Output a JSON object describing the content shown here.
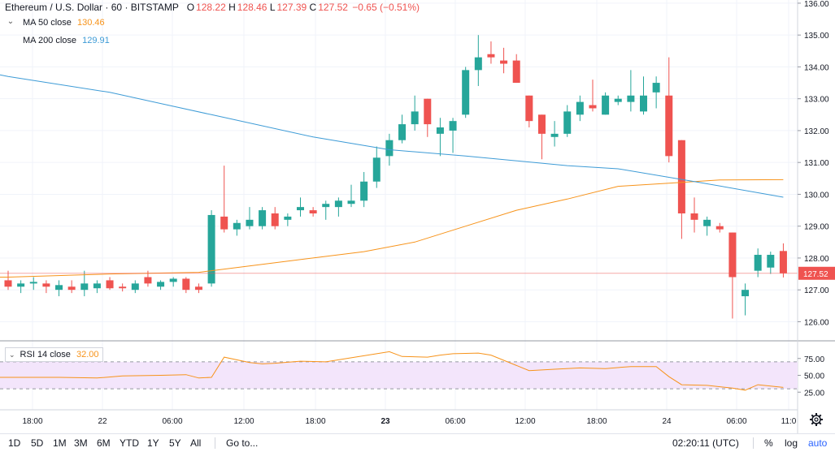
{
  "header": {
    "symbol": "Ethereum / U.S. Dollar",
    "interval": "60",
    "exchange": "BITSTAMP",
    "open_label": "O",
    "open": "128.22",
    "high_label": "H",
    "high": "128.46",
    "low_label": "L",
    "low": "127.39",
    "close_label": "C",
    "close": "127.52",
    "change": "−0.65 (−0.51%)"
  },
  "indicators": {
    "ma50": {
      "label": "MA 50 close",
      "value": "130.46",
      "color": "#f7931a"
    },
    "ma200": {
      "label": "MA 200 close",
      "value": "129.91",
      "color": "#3d9bd6"
    },
    "rsi": {
      "label": "RSI 14 close",
      "value": "32.00",
      "color": "#f7931a"
    }
  },
  "price_axis": {
    "ticks": [
      "136.00",
      "135.00",
      "134.00",
      "133.00",
      "132.00",
      "131.00",
      "130.00",
      "129.00",
      "128.00",
      "127.00",
      "126.00"
    ],
    "last_price": "127.52"
  },
  "rsi_axis": {
    "ticks": [
      "75.00",
      "50.00",
      "25.00"
    ]
  },
  "time_axis": {
    "ticks": [
      {
        "label": "18:00",
        "bold": false
      },
      {
        "label": "22",
        "bold": false
      },
      {
        "label": "06:00",
        "bold": false
      },
      {
        "label": "12:00",
        "bold": false
      },
      {
        "label": "18:00",
        "bold": false
      },
      {
        "label": "23",
        "bold": true
      },
      {
        "label": "06:00",
        "bold": false
      },
      {
        "label": "12:00",
        "bold": false
      },
      {
        "label": "18:00",
        "bold": false
      },
      {
        "label": "24",
        "bold": false
      },
      {
        "label": "06:00",
        "bold": false
      },
      {
        "label": "11:0",
        "bold": false
      }
    ]
  },
  "bottom_bar": {
    "ranges": [
      "1D",
      "5D",
      "1M",
      "3M",
      "6M",
      "YTD",
      "1Y",
      "5Y",
      "All"
    ],
    "goto": "Go to...",
    "clock": "02:20:11 (UTC)",
    "percent": "%",
    "log": "log",
    "auto": "auto"
  },
  "colors": {
    "up": "#26a69a",
    "down": "#ef5350",
    "rsi_band": "#f3e5fb"
  },
  "chart_data": {
    "type": "candlestick",
    "candles": [
      {
        "o": 127.3,
        "h": 127.6,
        "l": 127.0,
        "c": 127.1
      },
      {
        "o": 127.1,
        "h": 127.3,
        "l": 126.9,
        "c": 127.2
      },
      {
        "o": 127.2,
        "h": 127.4,
        "l": 127.0,
        "c": 127.25
      },
      {
        "o": 127.2,
        "h": 127.3,
        "l": 126.9,
        "c": 127.1
      },
      {
        "o": 127.0,
        "h": 127.3,
        "l": 126.8,
        "c": 127.15
      },
      {
        "o": 127.1,
        "h": 127.3,
        "l": 126.9,
        "c": 127.0
      },
      {
        "o": 127.0,
        "h": 127.6,
        "l": 126.8,
        "c": 127.2
      },
      {
        "o": 127.05,
        "h": 127.3,
        "l": 126.9,
        "c": 127.2
      },
      {
        "o": 127.3,
        "h": 127.4,
        "l": 127.0,
        "c": 127.05
      },
      {
        "o": 127.1,
        "h": 127.2,
        "l": 126.95,
        "c": 127.05
      },
      {
        "o": 127.0,
        "h": 127.3,
        "l": 126.9,
        "c": 127.2
      },
      {
        "o": 127.4,
        "h": 127.6,
        "l": 127.1,
        "c": 127.2
      },
      {
        "o": 127.1,
        "h": 127.3,
        "l": 127.0,
        "c": 127.25
      },
      {
        "o": 127.25,
        "h": 127.4,
        "l": 127.1,
        "c": 127.35
      },
      {
        "o": 127.35,
        "h": 127.4,
        "l": 126.9,
        "c": 127.0
      },
      {
        "o": 127.1,
        "h": 127.2,
        "l": 126.9,
        "c": 127.0
      },
      {
        "o": 127.2,
        "h": 129.5,
        "l": 127.1,
        "c": 129.35
      },
      {
        "o": 129.3,
        "h": 130.9,
        "l": 128.8,
        "c": 128.9
      },
      {
        "o": 128.9,
        "h": 129.2,
        "l": 128.7,
        "c": 129.1
      },
      {
        "o": 129.0,
        "h": 129.6,
        "l": 128.9,
        "c": 129.2
      },
      {
        "o": 129.0,
        "h": 129.6,
        "l": 128.9,
        "c": 129.5
      },
      {
        "o": 129.4,
        "h": 129.6,
        "l": 128.9,
        "c": 129.0
      },
      {
        "o": 129.2,
        "h": 129.4,
        "l": 129.0,
        "c": 129.3
      },
      {
        "o": 129.5,
        "h": 129.9,
        "l": 129.3,
        "c": 129.6
      },
      {
        "o": 129.5,
        "h": 129.6,
        "l": 129.3,
        "c": 129.4
      },
      {
        "o": 129.6,
        "h": 129.8,
        "l": 129.2,
        "c": 129.7
      },
      {
        "o": 129.6,
        "h": 129.9,
        "l": 129.3,
        "c": 129.8
      },
      {
        "o": 129.7,
        "h": 130.3,
        "l": 129.6,
        "c": 129.8
      },
      {
        "o": 129.8,
        "h": 130.7,
        "l": 129.6,
        "c": 130.4
      },
      {
        "o": 130.4,
        "h": 131.5,
        "l": 130.2,
        "c": 131.15
      },
      {
        "o": 131.2,
        "h": 131.9,
        "l": 130.9,
        "c": 131.7
      },
      {
        "o": 131.7,
        "h": 132.5,
        "l": 131.6,
        "c": 132.2
      },
      {
        "o": 132.2,
        "h": 133.1,
        "l": 132.0,
        "c": 132.6
      },
      {
        "o": 133.0,
        "h": 133.0,
        "l": 131.8,
        "c": 132.2
      },
      {
        "o": 131.9,
        "h": 132.4,
        "l": 131.2,
        "c": 132.1
      },
      {
        "o": 132.0,
        "h": 132.4,
        "l": 131.3,
        "c": 132.3
      },
      {
        "o": 132.5,
        "h": 134.0,
        "l": 132.4,
        "c": 133.9
      },
      {
        "o": 133.9,
        "h": 135.0,
        "l": 133.4,
        "c": 134.3
      },
      {
        "o": 134.4,
        "h": 134.8,
        "l": 134.1,
        "c": 134.3
      },
      {
        "o": 134.2,
        "h": 134.6,
        "l": 133.8,
        "c": 134.1
      },
      {
        "o": 134.2,
        "h": 134.4,
        "l": 133.5,
        "c": 133.5
      },
      {
        "o": 133.1,
        "h": 133.1,
        "l": 132.1,
        "c": 132.3
      },
      {
        "o": 132.5,
        "h": 132.5,
        "l": 131.1,
        "c": 131.9
      },
      {
        "o": 131.8,
        "h": 132.3,
        "l": 131.5,
        "c": 131.9
      },
      {
        "o": 131.9,
        "h": 132.8,
        "l": 131.8,
        "c": 132.6
      },
      {
        "o": 132.5,
        "h": 133.1,
        "l": 132.3,
        "c": 132.9
      },
      {
        "o": 132.8,
        "h": 133.6,
        "l": 132.6,
        "c": 132.7
      },
      {
        "o": 132.5,
        "h": 133.2,
        "l": 132.5,
        "c": 133.1
      },
      {
        "o": 132.9,
        "h": 133.1,
        "l": 132.8,
        "c": 133.0
      },
      {
        "o": 132.9,
        "h": 133.9,
        "l": 132.6,
        "c": 133.1
      },
      {
        "o": 132.6,
        "h": 133.7,
        "l": 132.5,
        "c": 133.1
      },
      {
        "o": 133.2,
        "h": 133.7,
        "l": 132.7,
        "c": 133.5
      },
      {
        "o": 133.1,
        "h": 134.3,
        "l": 131.0,
        "c": 131.2
      },
      {
        "o": 131.7,
        "h": 131.7,
        "l": 128.6,
        "c": 129.4
      },
      {
        "o": 129.4,
        "h": 129.9,
        "l": 128.8,
        "c": 129.2
      },
      {
        "o": 129.0,
        "h": 129.3,
        "l": 128.7,
        "c": 129.2
      },
      {
        "o": 129.0,
        "h": 129.1,
        "l": 128.8,
        "c": 128.9
      },
      {
        "o": 128.8,
        "h": 128.8,
        "l": 126.1,
        "c": 127.4
      },
      {
        "o": 126.8,
        "h": 127.2,
        "l": 126.2,
        "c": 127.0
      },
      {
        "o": 127.6,
        "h": 128.3,
        "l": 127.4,
        "c": 128.1
      },
      {
        "o": 127.7,
        "h": 128.2,
        "l": 127.5,
        "c": 128.1
      },
      {
        "o": 128.22,
        "h": 128.46,
        "l": 127.39,
        "c": 127.52
      }
    ],
    "ma50": [
      [
        0,
        127.4
      ],
      [
        8,
        127.5
      ],
      [
        15,
        127.55
      ],
      [
        16,
        127.6
      ],
      [
        20,
        127.8
      ],
      [
        24,
        128.0
      ],
      [
        28,
        128.2
      ],
      [
        32,
        128.5
      ],
      [
        36,
        129.0
      ],
      [
        40,
        129.5
      ],
      [
        44,
        129.85
      ],
      [
        48,
        130.25
      ],
      [
        52,
        130.35
      ],
      [
        56,
        130.45
      ],
      [
        61,
        130.46
      ]
    ],
    "ma200": [
      [
        0,
        133.7
      ],
      [
        8,
        133.2
      ],
      [
        16,
        132.5
      ],
      [
        24,
        131.8
      ],
      [
        30,
        131.4
      ],
      [
        36,
        131.2
      ],
      [
        44,
        130.9
      ],
      [
        48,
        130.8
      ],
      [
        54,
        130.4
      ],
      [
        61,
        129.91
      ]
    ],
    "rsi": [
      [
        0,
        47
      ],
      [
        4,
        47
      ],
      [
        7,
        46
      ],
      [
        9,
        49
      ],
      [
        12,
        50
      ],
      [
        14,
        51
      ],
      [
        15,
        46
      ],
      [
        16,
        47
      ],
      [
        17,
        77
      ],
      [
        19,
        69
      ],
      [
        20,
        67
      ],
      [
        21,
        68
      ],
      [
        23,
        71
      ],
      [
        25,
        70
      ],
      [
        27,
        76
      ],
      [
        29,
        82
      ],
      [
        30,
        85
      ],
      [
        31,
        78
      ],
      [
        33,
        77
      ],
      [
        34,
        80
      ],
      [
        35,
        82
      ],
      [
        37,
        83
      ],
      [
        38,
        80
      ],
      [
        41,
        57
      ],
      [
        43,
        59
      ],
      [
        45,
        61
      ],
      [
        47,
        60
      ],
      [
        49,
        63
      ],
      [
        51,
        63
      ],
      [
        52,
        48
      ],
      [
        53,
        36
      ],
      [
        55,
        35
      ],
      [
        57,
        31
      ],
      [
        58,
        28
      ],
      [
        59,
        36
      ],
      [
        61,
        32
      ]
    ],
    "rsi_ylim": [
      0,
      100
    ],
    "rsi_levels": [
      70,
      30
    ],
    "ylim": [
      125.4,
      136.1
    ]
  }
}
